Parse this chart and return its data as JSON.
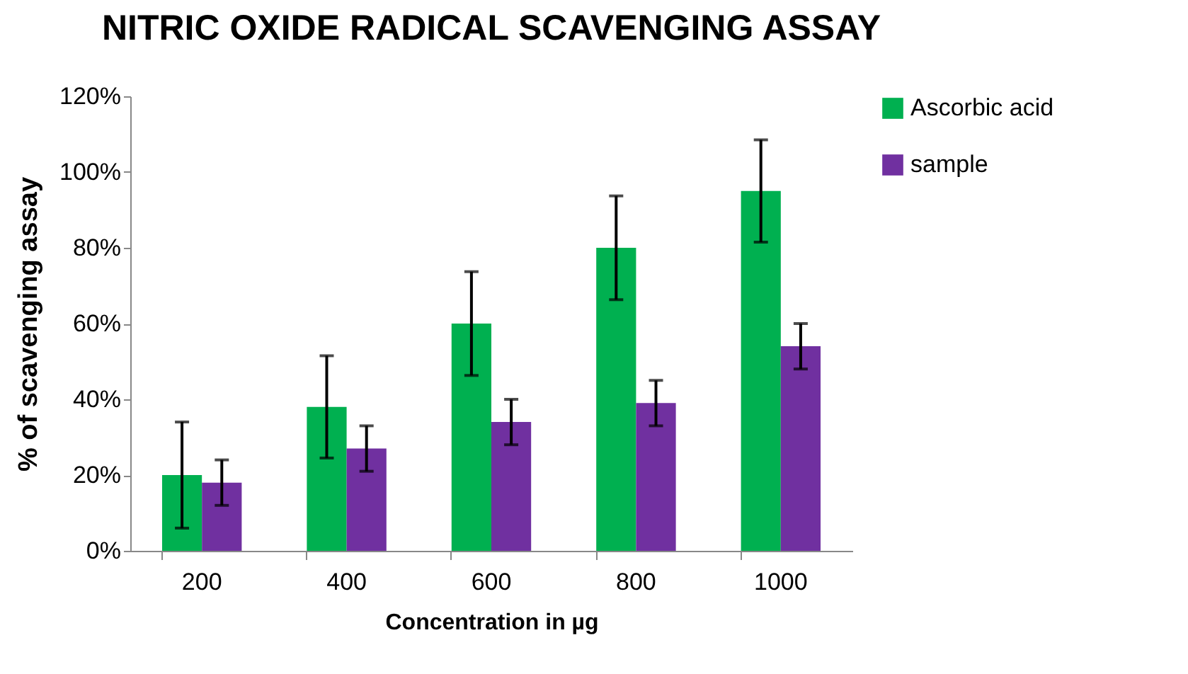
{
  "chart_data": {
    "type": "bar",
    "title": "NITRIC OXIDE RADICAL SCAVENGING ASSAY",
    "xlabel": "Concentration in µg",
    "ylabel": "% of scavenging assay",
    "categories": [
      "200",
      "400",
      "600",
      "800",
      "1000"
    ],
    "series": [
      {
        "name": "Ascorbic acid",
        "color": "#00b050",
        "values": [
          20,
          38,
          60,
          80,
          95
        ],
        "errors": [
          14,
          13.5,
          13.7,
          13.7,
          13.5
        ]
      },
      {
        "name": "sample",
        "color": "#7030a0",
        "values": [
          18,
          27,
          34,
          39,
          54
        ],
        "errors": [
          6,
          6,
          6,
          6,
          6
        ]
      }
    ],
    "ylim": [
      0,
      120
    ],
    "yticks": [
      {
        "value": 0,
        "label": "0%"
      },
      {
        "value": 20,
        "label": "20%"
      },
      {
        "value": 40,
        "label": "40%"
      },
      {
        "value": 60,
        "label": "60%"
      },
      {
        "value": 80,
        "label": "80%"
      },
      {
        "value": 100,
        "label": "100%"
      },
      {
        "value": 120,
        "label": "120%"
      }
    ],
    "grid": false,
    "legend": "right"
  }
}
